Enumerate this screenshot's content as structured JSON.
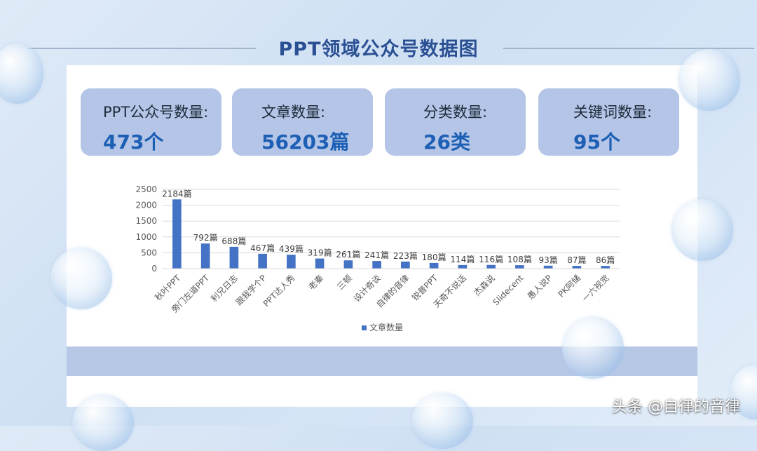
{
  "title": "PPT领域公众号数据图",
  "cards": [
    {
      "label": "PPT公众号数量:",
      "value": "473个"
    },
    {
      "label": "文章数量:",
      "value": "56203篇"
    },
    {
      "label": "分类数量:",
      "value": "26类"
    },
    {
      "label": "关键词数量:",
      "value": "95个"
    }
  ],
  "chart_data": {
    "type": "bar",
    "categories": [
      "秋叶PPT",
      "旁门左道PPT",
      "利兄日志",
      "跟我学个P",
      "PPT达人秀",
      "老秦",
      "三顿",
      "设计奇谈",
      "自律的音律",
      "锐普PPT",
      "天奇不说话",
      "杰森说",
      "Slidecent",
      "愚人说P",
      "PK阿储",
      "一六视觉"
    ],
    "series": [
      {
        "name": "文章数量",
        "values": [
          2184,
          792,
          688,
          467,
          439,
          319,
          261,
          241,
          223,
          180,
          114,
          116,
          108,
          93,
          87,
          86
        ]
      }
    ],
    "data_labels": [
      "2184篇",
      "792篇",
      "688篇",
      "467篇",
      "439篇",
      "319篇",
      "261篇",
      "241篇",
      "223篇",
      "180篇",
      "114篇",
      "116篇",
      "108篇",
      "93篇",
      "87篇",
      "86篇"
    ],
    "y_ticks": [
      0,
      500,
      1000,
      1500,
      2000,
      2500
    ],
    "ylim": [
      0,
      2500
    ],
    "grid": true,
    "legend": "bottom-center",
    "bar_color": "#4472c4"
  },
  "footer": "头条 @自律的音律"
}
